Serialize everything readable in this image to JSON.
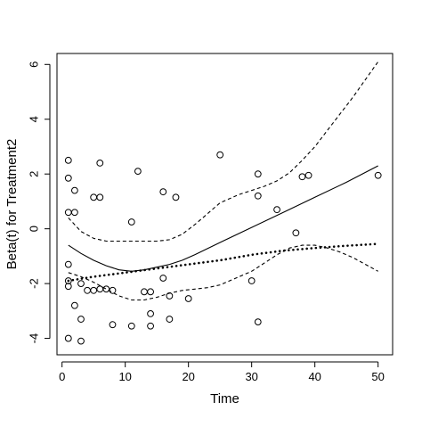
{
  "chart_data": {
    "type": "scatter",
    "title": "",
    "xlabel": "Time",
    "ylabel": "Beta(t) for Treatment2",
    "xlim": [
      -0.8,
      52.3
    ],
    "ylim": [
      -4.6,
      6.4
    ],
    "x_ticks": [
      0,
      10,
      20,
      30,
      40,
      50
    ],
    "x_tick_labels": [
      "0",
      "10",
      "20",
      "30",
      "40",
      "50"
    ],
    "y_ticks": [
      -4,
      -2,
      0,
      2,
      4,
      6
    ],
    "y_tick_labels": [
      "-4",
      "-2",
      "0",
      "2",
      "4",
      "6"
    ],
    "grid": false,
    "legend": "none",
    "colors": {
      "ink": "#000000",
      "background": "#ffffff"
    },
    "series": [
      {
        "kind": "points",
        "marker": "open-circle",
        "x": [
          1,
          1,
          1,
          1,
          1,
          1,
          1,
          2,
          2,
          2,
          3,
          3,
          3,
          4,
          5,
          5,
          6,
          6,
          6,
          7,
          8,
          8,
          11,
          11,
          12,
          13,
          14,
          14,
          14,
          16,
          16,
          17,
          17,
          18,
          20,
          25,
          30,
          31,
          31,
          31,
          34,
          37,
          38,
          39,
          50
        ],
        "y": [
          2.5,
          1.85,
          0.6,
          -1.3,
          -1.9,
          -2.1,
          -4.0,
          1.4,
          0.6,
          -2.8,
          -2.0,
          -3.3,
          -4.1,
          -2.25,
          1.15,
          -2.25,
          2.4,
          1.15,
          -2.2,
          -2.2,
          -2.25,
          -3.5,
          0.25,
          -3.55,
          2.1,
          -2.3,
          -2.3,
          -3.1,
          -3.55,
          1.35,
          -1.8,
          -2.45,
          -3.3,
          1.15,
          -2.55,
          2.7,
          -1.9,
          2.0,
          1.2,
          -3.4,
          0.7,
          -0.15,
          1.9,
          1.95,
          1.95
        ]
      },
      {
        "kind": "line",
        "style": "solid",
        "x": [
          1,
          3,
          5,
          7,
          9,
          11,
          13,
          15,
          17,
          19,
          21,
          25,
          30,
          35,
          40,
          45,
          50
        ],
        "y": [
          -0.6,
          -0.9,
          -1.15,
          -1.35,
          -1.5,
          -1.55,
          -1.5,
          -1.4,
          -1.3,
          -1.15,
          -0.95,
          -0.5,
          0.05,
          0.6,
          1.15,
          1.7,
          2.3
        ]
      },
      {
        "kind": "line",
        "style": "dashed",
        "x": [
          1,
          3,
          5,
          7,
          9,
          11,
          13,
          15,
          17,
          19,
          21,
          23,
          25,
          28,
          30,
          32,
          34,
          36,
          38,
          40,
          42,
          44,
          46,
          48,
          50
        ],
        "y": [
          0.4,
          -0.1,
          -0.35,
          -0.45,
          -0.45,
          -0.45,
          -0.45,
          -0.45,
          -0.4,
          -0.2,
          0.15,
          0.55,
          0.95,
          1.25,
          1.4,
          1.55,
          1.75,
          2.05,
          2.5,
          3.0,
          3.6,
          4.2,
          4.8,
          5.45,
          6.1
        ]
      },
      {
        "kind": "line",
        "style": "dashed",
        "x": [
          1,
          3,
          5,
          7,
          9,
          11,
          13,
          15,
          17,
          19,
          21,
          23,
          25,
          27,
          30,
          32,
          34,
          36,
          38,
          40,
          42,
          44,
          46,
          48,
          50
        ],
        "y": [
          -1.6,
          -1.75,
          -1.95,
          -2.2,
          -2.45,
          -2.6,
          -2.6,
          -2.5,
          -2.35,
          -2.25,
          -2.2,
          -2.15,
          -2.05,
          -1.85,
          -1.55,
          -1.25,
          -0.95,
          -0.7,
          -0.6,
          -0.6,
          -0.7,
          -0.85,
          -1.05,
          -1.3,
          -1.55
        ]
      },
      {
        "kind": "line",
        "style": "dotted",
        "x": [
          1,
          5,
          10,
          15,
          20,
          25,
          30,
          35,
          40,
          45,
          50
        ],
        "y": [
          -1.9,
          -1.75,
          -1.6,
          -1.45,
          -1.3,
          -1.15,
          -0.95,
          -0.8,
          -0.7,
          -0.62,
          -0.55
        ]
      }
    ]
  }
}
